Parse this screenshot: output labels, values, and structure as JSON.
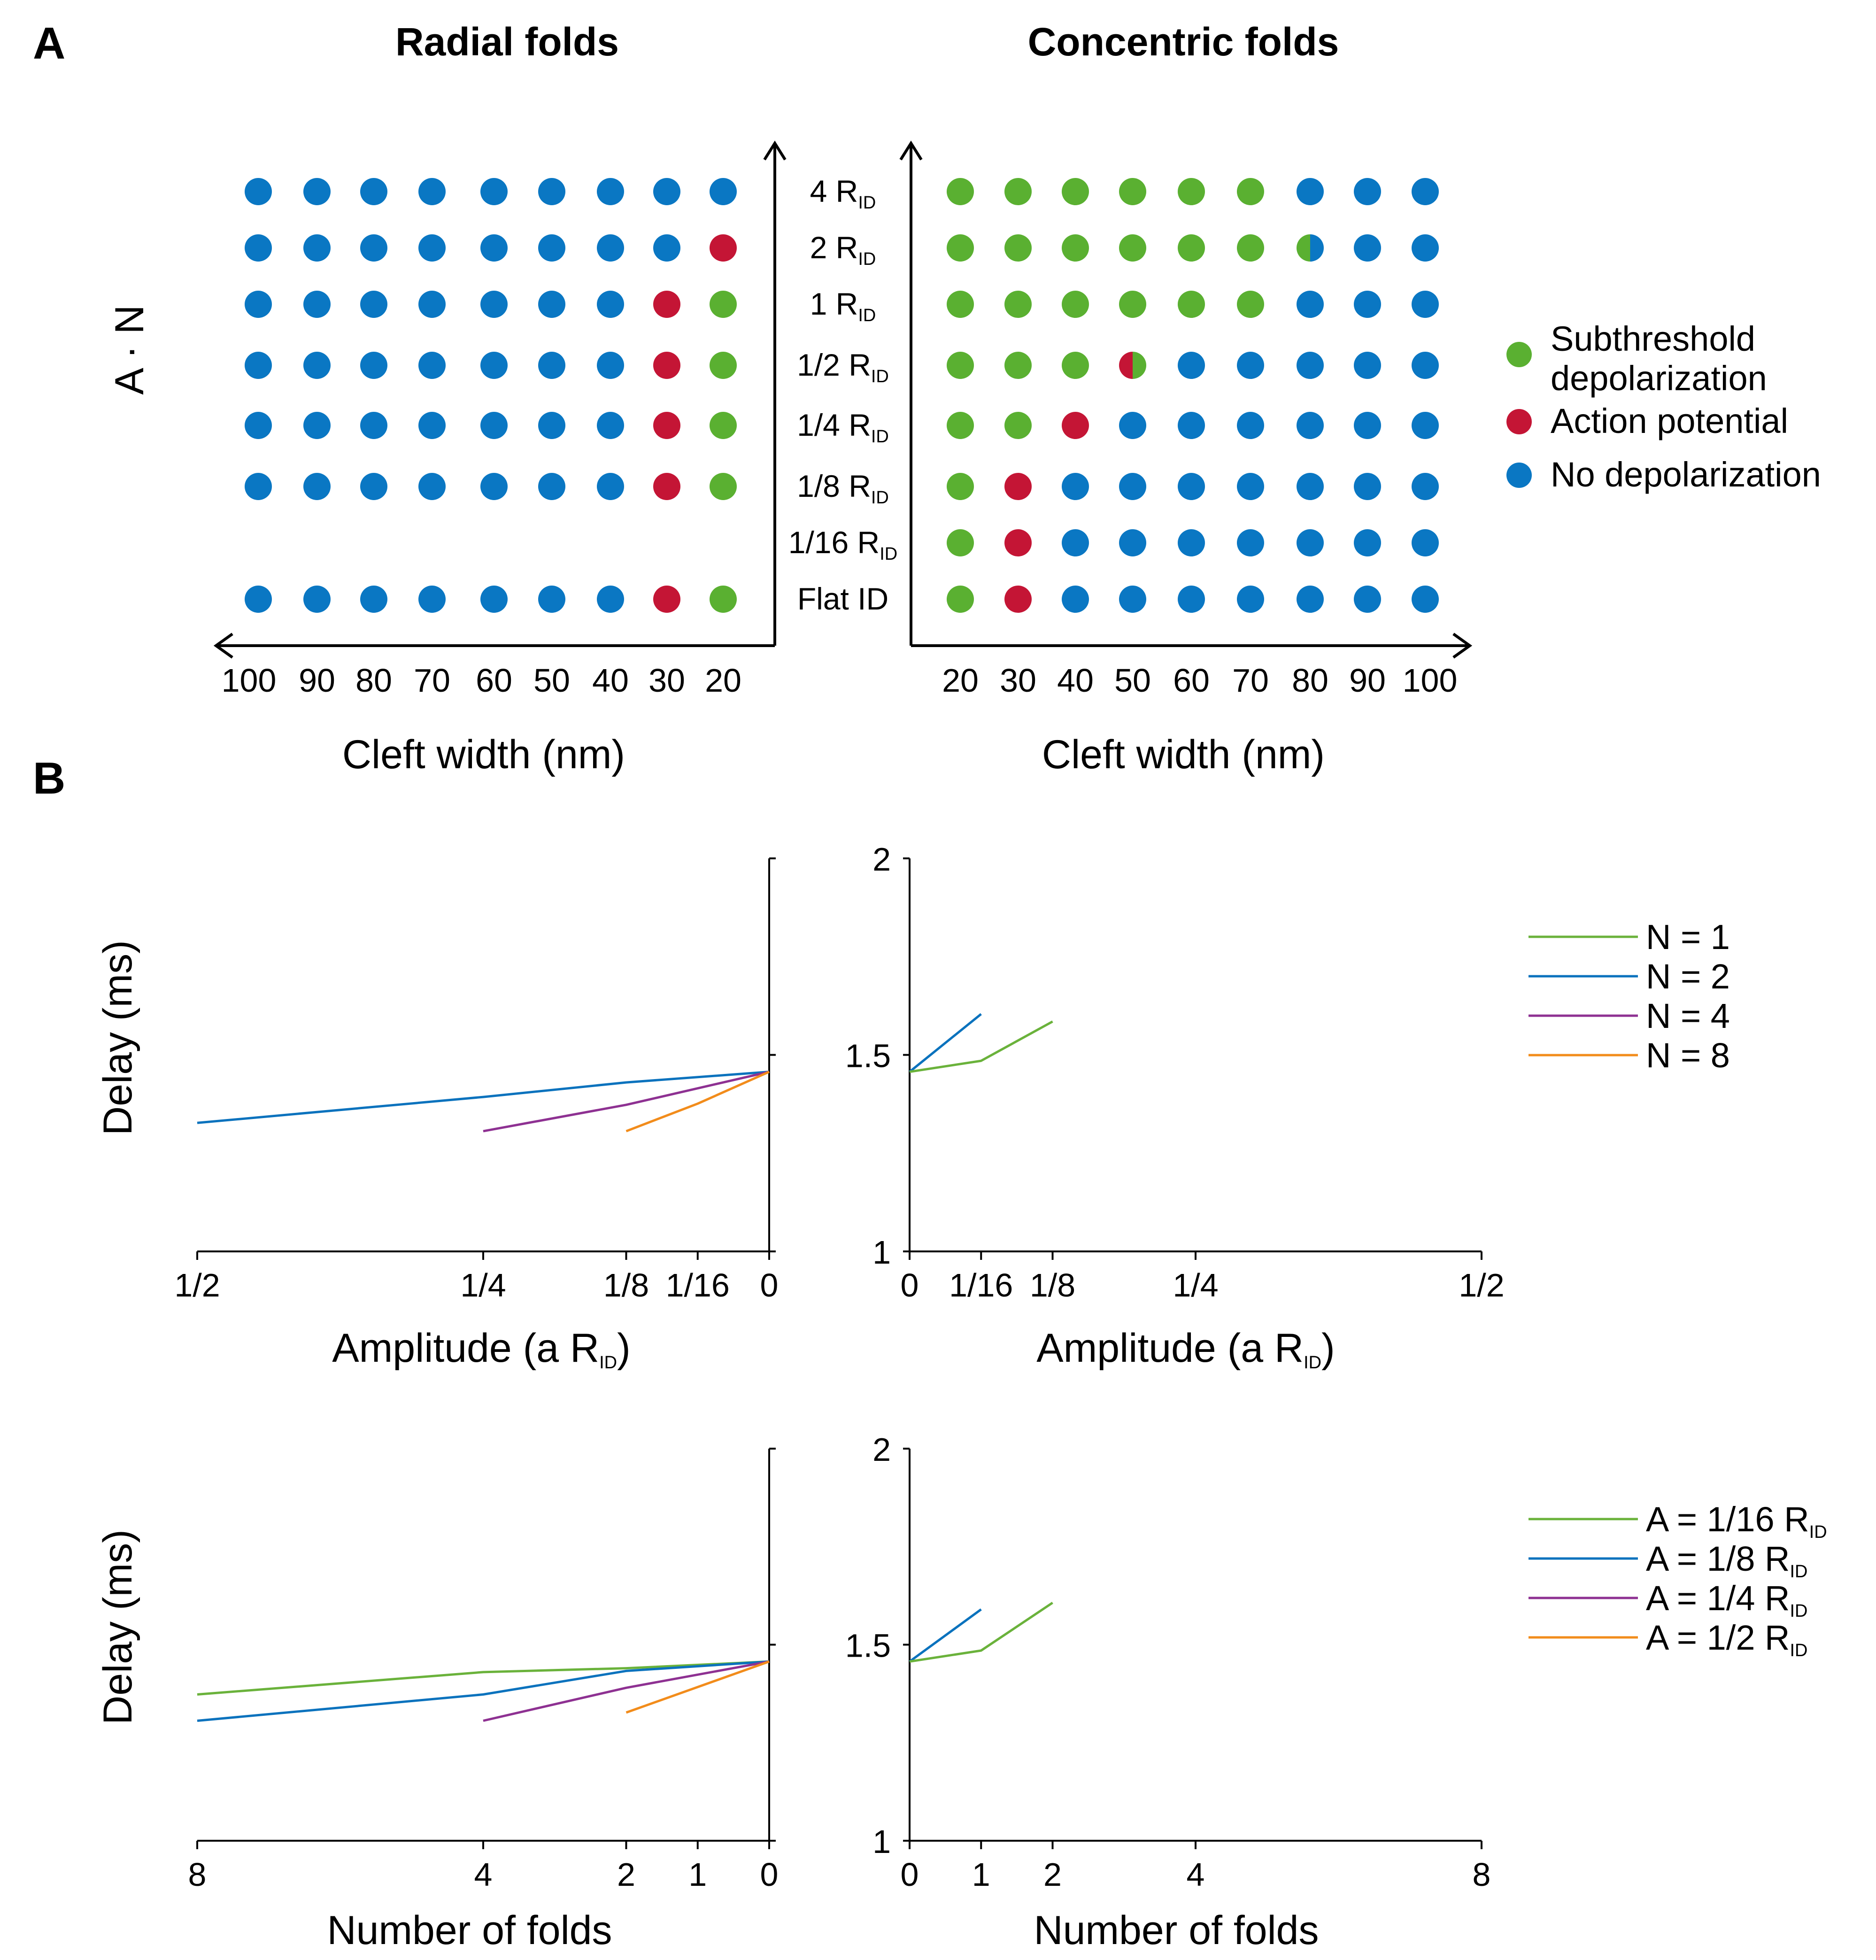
{
  "panel_labels": {
    "a": "A",
    "b": "B"
  },
  "grid_titles": {
    "left": "Radial folds",
    "right": "Concentric folds"
  },
  "colors": {
    "subthreshold": "#5ab031",
    "action_potential": "#c41535",
    "no_depolarization": "#0a77c3",
    "n1": "#6ab23b",
    "n2": "#0a72bd",
    "n4": "#8e3192",
    "n8": "#f28c1b"
  },
  "chart_data": [
    {
      "type": "scatter",
      "subtype": "categorical-grid",
      "title": "Radial folds",
      "xlabel": "Cleft width (nm)",
      "ylabel": "A · N",
      "x_categories": [
        "100",
        "90",
        "80",
        "70",
        "60",
        "50",
        "40",
        "30",
        "20"
      ],
      "row_labels": [
        {
          "main": "4 R",
          "sub": "ID"
        },
        {
          "main": "2 R",
          "sub": "ID"
        },
        {
          "main": "1 R",
          "sub": "ID"
        },
        {
          "main": "1/2 R",
          "sub": "ID"
        },
        {
          "main": "1/4 R",
          "sub": "ID"
        },
        {
          "main": "1/8 R",
          "sub": "ID"
        },
        {
          "main": "1/16 R",
          "sub": "ID"
        },
        {
          "main": "Flat ID",
          "sub": ""
        }
      ],
      "legend": [
        {
          "key": "S",
          "label_line1": "Subthreshold",
          "label_line2": "depolarization"
        },
        {
          "key": "A",
          "label_line1": "Action potential",
          "label_line2": ""
        },
        {
          "key": "N",
          "label_line1": "No depolarization",
          "label_line2": ""
        }
      ],
      "cells": [
        [
          "N",
          "N",
          "N",
          "N",
          "N",
          "N",
          "N",
          "N",
          "N"
        ],
        [
          "N",
          "N",
          "N",
          "N",
          "N",
          "N",
          "N",
          "N",
          "A"
        ],
        [
          "N",
          "N",
          "N",
          "N",
          "N",
          "N",
          "N",
          "A",
          "S"
        ],
        [
          "N",
          "N",
          "N",
          "N",
          "N",
          "N",
          "N",
          "A",
          "S"
        ],
        [
          "N",
          "N",
          "N",
          "N",
          "N",
          "N",
          "N",
          "A",
          "S"
        ],
        [
          "N",
          "N",
          "N",
          "N",
          "N",
          "N",
          "N",
          "A",
          "S"
        ],
        [
          "",
          "",
          "",
          "",
          "",
          "",
          "",
          "",
          ""
        ],
        [
          "N",
          "N",
          "N",
          "N",
          "N",
          "N",
          "N",
          "A",
          "S"
        ]
      ]
    },
    {
      "type": "scatter",
      "subtype": "categorical-grid",
      "title": "Concentric folds",
      "xlabel": "Cleft width (nm)",
      "x_categories": [
        "20",
        "30",
        "40",
        "50",
        "60",
        "70",
        "80",
        "90",
        "100"
      ],
      "cells": [
        [
          "S",
          "S",
          "S",
          "S",
          "S",
          "S",
          "N",
          "N",
          "N"
        ],
        [
          "S",
          "S",
          "S",
          "S",
          "S",
          "S",
          "SN",
          "N",
          "N"
        ],
        [
          "S",
          "S",
          "S",
          "S",
          "S",
          "S",
          "N",
          "N",
          "N"
        ],
        [
          "S",
          "S",
          "S",
          "AS",
          "N",
          "N",
          "N",
          "N",
          "N"
        ],
        [
          "S",
          "S",
          "A",
          "N",
          "N",
          "N",
          "N",
          "N",
          "N"
        ],
        [
          "S",
          "A",
          "N",
          "N",
          "N",
          "N",
          "N",
          "N",
          "N"
        ],
        [
          "S",
          "A",
          "N",
          "N",
          "N",
          "N",
          "N",
          "N",
          "N"
        ],
        [
          "S",
          "A",
          "N",
          "N",
          "N",
          "N",
          "N",
          "N",
          "N"
        ]
      ]
    },
    {
      "type": "line",
      "xlabel": "Amplitude (a R",
      "xlabel_sub": "ID",
      "xlabel_end": ")",
      "ylabel": "Delay (ms)",
      "x_reversed": true,
      "xlim": [
        0,
        0.5
      ],
      "ylim": [
        1,
        2
      ],
      "x_ticks": [
        {
          "v": 0.5,
          "label": "1/2"
        },
        {
          "v": 0.25,
          "label": "1/4"
        },
        {
          "v": 0.125,
          "label": "1/8"
        },
        {
          "v": 0.0625,
          "label": "1/16"
        },
        {
          "v": 0,
          "label": "0"
        }
      ],
      "y_ticks": [],
      "series": [
        {
          "name": "N = 2",
          "color_key": "n2",
          "points": [
            [
              0.5,
              1.327
            ],
            [
              0.25,
              1.393
            ],
            [
              0.125,
              1.43
            ],
            [
              0,
              1.457
            ]
          ]
        },
        {
          "name": "N = 4",
          "color_key": "n4",
          "points": [
            [
              0.25,
              1.306
            ],
            [
              0.125,
              1.373
            ],
            [
              0,
              1.457
            ]
          ]
        },
        {
          "name": "N = 8",
          "color_key": "n8",
          "points": [
            [
              0.125,
              1.306
            ],
            [
              0.0625,
              1.376
            ],
            [
              0,
              1.457
            ]
          ]
        }
      ]
    },
    {
      "type": "line",
      "xlabel": "Amplitude (a R",
      "xlabel_sub": "ID",
      "xlabel_end": ")",
      "xlim": [
        0,
        0.5
      ],
      "ylim": [
        1,
        2
      ],
      "x_ticks": [
        {
          "v": 0,
          "label": "0"
        },
        {
          "v": 0.0625,
          "label": "1/16"
        },
        {
          "v": 0.125,
          "label": "1/8"
        },
        {
          "v": 0.25,
          "label": "1/4"
        },
        {
          "v": 0.5,
          "label": "1/2"
        }
      ],
      "y_ticks": [
        {
          "v": 2,
          "label": "2"
        },
        {
          "v": 1.5,
          "label": "1.5"
        },
        {
          "v": 1,
          "label": "1"
        }
      ],
      "legend": [
        {
          "name": "N = 1",
          "color_key": "n1"
        },
        {
          "name": "N = 2",
          "color_key": "n2"
        },
        {
          "name": "N = 4",
          "color_key": "n4"
        },
        {
          "name": "N = 8",
          "color_key": "n8"
        }
      ],
      "series": [
        {
          "name": "N = 2",
          "color_key": "n2",
          "points": [
            [
              0,
              1.457
            ],
            [
              0.0625,
              1.604
            ]
          ]
        },
        {
          "name": "N = 1",
          "color_key": "n1",
          "points": [
            [
              0,
              1.457
            ],
            [
              0.0625,
              1.485
            ],
            [
              0.125,
              1.585
            ]
          ]
        }
      ]
    },
    {
      "type": "line",
      "xlabel": "Number of folds",
      "ylabel": "Delay (ms)",
      "x_reversed": true,
      "xlim": [
        0,
        8
      ],
      "ylim": [
        1,
        2
      ],
      "x_ticks": [
        {
          "v": 8,
          "label": "8"
        },
        {
          "v": 4,
          "label": "4"
        },
        {
          "v": 2,
          "label": "2"
        },
        {
          "v": 1,
          "label": "1"
        },
        {
          "v": 0,
          "label": "0"
        }
      ],
      "y_ticks": [],
      "series": [
        {
          "name": "A = 1/16 R",
          "color_key": "n1",
          "points": [
            [
              8,
              1.373
            ],
            [
              4,
              1.43
            ],
            [
              2,
              1.44
            ],
            [
              0,
              1.457
            ]
          ]
        },
        {
          "name": "A = 1/8 R",
          "color_key": "n2",
          "points": [
            [
              8,
              1.306
            ],
            [
              4,
              1.373
            ],
            [
              2,
              1.433
            ],
            [
              0,
              1.457
            ]
          ]
        },
        {
          "name": "A = 1/4 R",
          "color_key": "n4",
          "points": [
            [
              4,
              1.306
            ],
            [
              2,
              1.39
            ],
            [
              0,
              1.457
            ]
          ]
        },
        {
          "name": "A = 1/2 R",
          "color_key": "n8",
          "points": [
            [
              2,
              1.327
            ],
            [
              0,
              1.457
            ]
          ]
        }
      ]
    },
    {
      "type": "line",
      "xlabel": "Number of folds",
      "xlim": [
        0,
        8
      ],
      "ylim": [
        1,
        2
      ],
      "x_ticks": [
        {
          "v": 0,
          "label": "0"
        },
        {
          "v": 1,
          "label": "1"
        },
        {
          "v": 2,
          "label": "2"
        },
        {
          "v": 4,
          "label": "4"
        },
        {
          "v": 8,
          "label": "8"
        }
      ],
      "y_ticks": [
        {
          "v": 2,
          "label": "2"
        },
        {
          "v": 1.5,
          "label": "1.5"
        },
        {
          "v": 1,
          "label": "1"
        }
      ],
      "legend": [
        {
          "name": "A = 1/16 R",
          "sub": "ID",
          "color_key": "n1"
        },
        {
          "name": "A = 1/8 R",
          "sub": "ID",
          "color_key": "n2"
        },
        {
          "name": "A = 1/4 R",
          "sub": "ID",
          "color_key": "n4"
        },
        {
          "name": "A = 1/2 R",
          "sub": "ID",
          "color_key": "n8"
        }
      ],
      "series": [
        {
          "name": "A = 1/8 R",
          "color_key": "n2",
          "points": [
            [
              0,
              1.457
            ],
            [
              1,
              1.59
            ]
          ]
        },
        {
          "name": "A = 1/16 R",
          "color_key": "n1",
          "points": [
            [
              0,
              1.457
            ],
            [
              1,
              1.485
            ],
            [
              2,
              1.607
            ]
          ]
        }
      ]
    }
  ]
}
